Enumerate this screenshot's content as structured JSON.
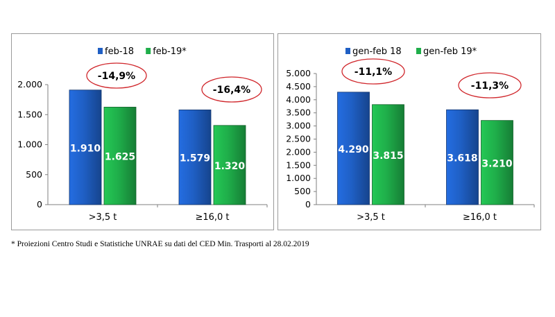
{
  "chart_data": [
    {
      "type": "bar",
      "categories": [
        ">3,5 t",
        "≥16,0 t"
      ],
      "series": [
        {
          "name": "feb-18",
          "values": [
            1910,
            1579
          ],
          "labels": [
            "1.910",
            "1.579"
          ],
          "color": "#1f5fc4"
        },
        {
          "name": "feb-19*",
          "values": [
            1625,
            1320
          ],
          "labels": [
            "1.625",
            "1.320"
          ],
          "color": "#1fae4a"
        }
      ],
      "ylim": [
        0,
        2000
      ],
      "yticks": [
        0,
        500,
        1000,
        1500,
        2000
      ],
      "ytick_labels": [
        "0",
        "500",
        "1.000",
        "1.500",
        "2.000"
      ],
      "annotations": [
        "-14,9%",
        "-16,4%"
      ],
      "legend": "top-center",
      "grid": false,
      "title": "",
      "xlabel": "",
      "ylabel": ""
    },
    {
      "type": "bar",
      "categories": [
        ">3,5 t",
        "≥16,0 t"
      ],
      "series": [
        {
          "name": "gen-feb 18",
          "values": [
            4290,
            3618
          ],
          "labels": [
            "4.290",
            "3.618"
          ],
          "color": "#1f5fc4"
        },
        {
          "name": "gen-feb 19*",
          "values": [
            3815,
            3210
          ],
          "labels": [
            "3.815",
            "3.210"
          ],
          "color": "#1fae4a"
        }
      ],
      "ylim": [
        0,
        5000
      ],
      "yticks": [
        0,
        500,
        1000,
        1500,
        2000,
        2500,
        3000,
        3500,
        4000,
        4500,
        5000
      ],
      "ytick_labels": [
        "0",
        "500",
        "1.000",
        "1.500",
        "2.000",
        "2.500",
        "3.000",
        "3.500",
        "4.000",
        "4.500",
        "5.000"
      ],
      "annotations": [
        "-11,1%",
        "-11,3%"
      ],
      "legend": "top-center",
      "grid": false,
      "title": "",
      "xlabel": "",
      "ylabel": ""
    }
  ],
  "footnote": "* Proiezioni Centro Studi e Statistiche UNRAE su dati del CED Min. Trasporti al 28.02.2019"
}
